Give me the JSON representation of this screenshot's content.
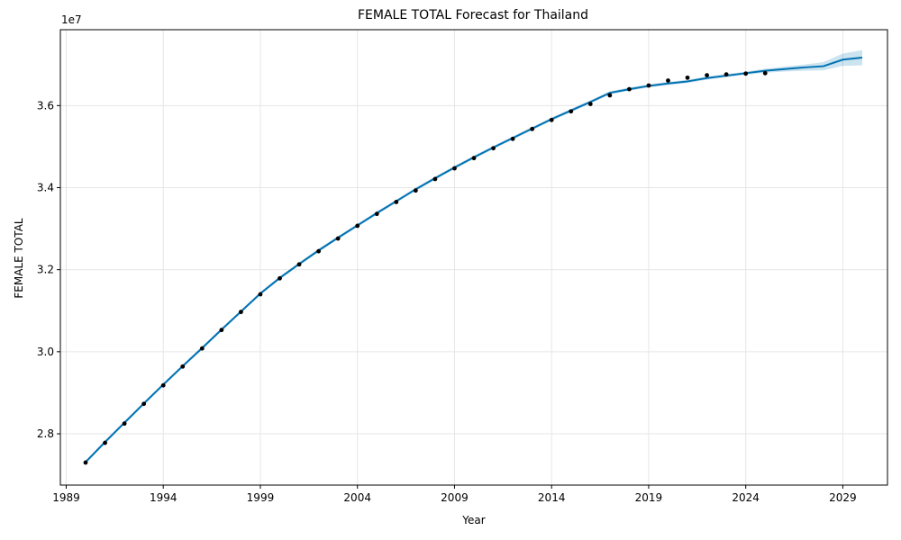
{
  "chart_data": {
    "type": "line",
    "title": "FEMALE TOTAL Forecast for Thailand",
    "xlabel": "Year",
    "ylabel": "FEMALE TOTAL",
    "y_offset_label": "1e7",
    "xlim": [
      1988.7,
      2031.3
    ],
    "ylim": [
      26750000,
      37850000
    ],
    "x_ticks": [
      1989,
      1994,
      1999,
      2004,
      2009,
      2014,
      2019,
      2024,
      2029
    ],
    "x_tick_labels": [
      "1989",
      "1994",
      "1999",
      "2004",
      "2009",
      "2014",
      "2019",
      "2024",
      "2029"
    ],
    "y_ticks": [
      28000000,
      30000000,
      32000000,
      34000000,
      36000000
    ],
    "y_tick_labels": [
      "2.8",
      "3.0",
      "3.2",
      "3.4",
      "3.6"
    ],
    "grid": true,
    "colors": {
      "forecast_line": "#0072B2",
      "interval_fill": "#0072B2",
      "observed_points": "#000000",
      "grid": "#e6e6e6"
    },
    "series": [
      {
        "kind": "observed",
        "x": [
          1990,
          1991,
          1992,
          1993,
          1994,
          1995,
          1996,
          1997,
          1998,
          1999,
          2000,
          2001,
          2002,
          2003,
          2004,
          2005,
          2006,
          2007,
          2008,
          2009,
          2010,
          2011,
          2012,
          2013,
          2014,
          2015,
          2016,
          2017,
          2018,
          2019,
          2020,
          2021,
          2022,
          2023,
          2024,
          2025
        ],
        "values": [
          27300000,
          27780000,
          28250000,
          28730000,
          29180000,
          29640000,
          30080000,
          30530000,
          30970000,
          31400000,
          31790000,
          32130000,
          32450000,
          32760000,
          33070000,
          33360000,
          33650000,
          33930000,
          34210000,
          34470000,
          34720000,
          34960000,
          35190000,
          35430000,
          35650000,
          35860000,
          36040000,
          36250000,
          36400000,
          36490000,
          36610000,
          36680000,
          36740000,
          36760000,
          36780000,
          36790000
        ]
      },
      {
        "kind": "forecast",
        "x": [
          1990,
          1991,
          1992,
          1993,
          1994,
          1995,
          1996,
          1997,
          1998,
          1999,
          2000,
          2001,
          2002,
          2003,
          2004,
          2005,
          2006,
          2007,
          2008,
          2009,
          2010,
          2011,
          2012,
          2013,
          2014,
          2015,
          2016,
          2017,
          2018,
          2019,
          2020,
          2021,
          2022,
          2023,
          2024,
          2025,
          2026,
          2027,
          2028,
          2029,
          2030
        ],
        "values": [
          27310000,
          27800000,
          28270000,
          28740000,
          29200000,
          29650000,
          30090000,
          30540000,
          30980000,
          31420000,
          31800000,
          32140000,
          32470000,
          32780000,
          33080000,
          33380000,
          33670000,
          33960000,
          34230000,
          34490000,
          34740000,
          34980000,
          35210000,
          35440000,
          35670000,
          35880000,
          36090000,
          36310000,
          36400000,
          36480000,
          36540000,
          36590000,
          36670000,
          36730000,
          36790000,
          36850000,
          36890000,
          36930000,
          36960000,
          37120000,
          37170000
        ],
        "lower": [
          27270000,
          27760000,
          28230000,
          28700000,
          29160000,
          29610000,
          30050000,
          30500000,
          30940000,
          31380000,
          31760000,
          32100000,
          32430000,
          32740000,
          33040000,
          33340000,
          33630000,
          33920000,
          34190000,
          34450000,
          34700000,
          34940000,
          35170000,
          35400000,
          35630000,
          35840000,
          36050000,
          36270000,
          36360000,
          36440000,
          36500000,
          36550000,
          36630000,
          36690000,
          36750000,
          36800000,
          36830000,
          36850000,
          36860000,
          36970000,
          36980000
        ],
        "upper": [
          27350000,
          27840000,
          28310000,
          28780000,
          29240000,
          29690000,
          30130000,
          30580000,
          31020000,
          31460000,
          31840000,
          32180000,
          32510000,
          32820000,
          33120000,
          33420000,
          33710000,
          34000000,
          34270000,
          34530000,
          34780000,
          35020000,
          35250000,
          35480000,
          35710000,
          35920000,
          36130000,
          36350000,
          36440000,
          36520000,
          36580000,
          36630000,
          36710000,
          36770000,
          36830000,
          36900000,
          36950000,
          37000000,
          37060000,
          37270000,
          37350000
        ]
      }
    ]
  }
}
